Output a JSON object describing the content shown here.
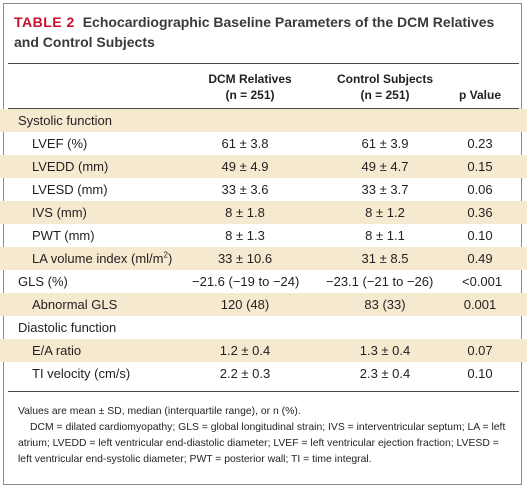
{
  "title": {
    "label": "TABLE 2",
    "text": "Echocardiographic Baseline Parameters of the DCM Relatives and Control Subjects"
  },
  "headers": {
    "dcm_line1": "DCM Relatives",
    "dcm_line2": "(n = 251)",
    "control_line1": "Control Subjects",
    "control_line2": "(n = 251)",
    "p": "p Value"
  },
  "rows": [
    {
      "label": "Systolic function",
      "dcm": "",
      "control": "",
      "p": ""
    },
    {
      "label": "LVEF (%)",
      "dcm": "61 ± 3.8",
      "control": "61 ± 3.9",
      "p": "0.23"
    },
    {
      "label": "LVEDD (mm)",
      "dcm": "49 ± 4.9",
      "control": "49 ± 4.7",
      "p": "0.15"
    },
    {
      "label": "LVESD (mm)",
      "dcm": "33 ± 3.6",
      "control": "33 ± 3.7",
      "p": "0.06"
    },
    {
      "label": "IVS (mm)",
      "dcm": "8 ± 1.8",
      "control": "8 ± 1.2",
      "p": "0.36"
    },
    {
      "label": "PWT (mm)",
      "dcm": "8 ± 1.3",
      "control": "8 ± 1.1",
      "p": "0.10"
    },
    {
      "label": "LA volume index (ml/m",
      "label_sup": "2",
      "label_end": ")",
      "dcm": "33 ± 10.6",
      "control": "31 ± 8.5",
      "p": "0.49"
    },
    {
      "label": "GLS (%)",
      "dcm": "−21.6 (−19 to −24)",
      "control": "−23.1 (−21 to −26)",
      "p": "<0.001"
    },
    {
      "label": "Abnormal GLS",
      "dcm": "120 (48)",
      "control": "83 (33)",
      "p": "0.001"
    },
    {
      "label": "Diastolic function",
      "dcm": "",
      "control": "",
      "p": ""
    },
    {
      "label": "E/A ratio",
      "dcm": "1.2 ± 0.4",
      "control": "1.3 ± 0.4",
      "p": "0.07"
    },
    {
      "label": "TI velocity (cm/s)",
      "dcm": "2.2 ± 0.3",
      "control": "2.3 ± 0.4",
      "p": "0.10"
    }
  ],
  "footnote": {
    "line1": "Values are mean ± SD, median (interquartile range), or n (%).",
    "line2": "DCM = dilated cardiomyopathy; GLS = global longitudinal strain; IVS = interventricular septum; LA = left atrium; LVEDD = left ventricular end-diastolic diameter; LVEF = left ventricular ejection fraction; LVESD = left ventricular end-systolic diameter; PWT = posterior wall; TI = time integral."
  },
  "colors": {
    "title_label": "#c8102e",
    "title_text": "#3a3a3a",
    "shaded_row": "#f5e9d0",
    "rule": "#4a4a4a",
    "border": "#8a8a8a"
  }
}
